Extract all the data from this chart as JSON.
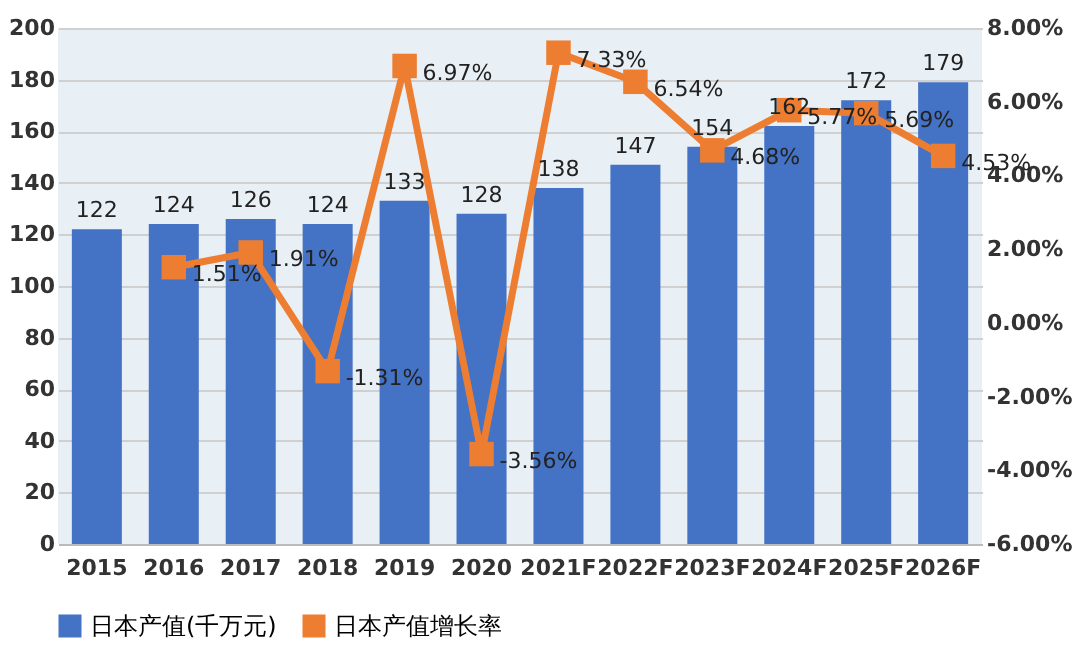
{
  "chart_data": {
    "type": "bar",
    "categories": [
      "2015",
      "2016",
      "2017",
      "2018",
      "2019",
      "2020",
      "2021F",
      "2022F",
      "2023F",
      "2024F",
      "2025F",
      "2026F"
    ],
    "series": [
      {
        "name": "日本产值(千万元)",
        "color": "#4472c4",
        "values": [
          122,
          124,
          126,
          124,
          133,
          128,
          138,
          147,
          154,
          162,
          172,
          179
        ],
        "value_labels": [
          "122",
          "124",
          "126",
          "124",
          "133",
          "128",
          "138",
          "147",
          "154",
          "162",
          "172",
          "179"
        ]
      },
      {
        "name": "日本产值增长率",
        "type": "line",
        "axis": "y2",
        "color": "#ed7d31",
        "values": [
          null,
          1.51,
          1.91,
          -1.31,
          6.97,
          -3.56,
          7.33,
          6.54,
          4.68,
          5.77,
          5.69,
          4.53
        ],
        "value_labels": [
          null,
          "1.51%",
          "1.91%",
          "-1.31%",
          "6.97%",
          "-3.56%",
          "7.33%",
          "6.54%",
          "4.68%",
          "5.77%",
          "5.69%",
          "4.53%"
        ]
      }
    ],
    "ylim": [
      0,
      200
    ],
    "yticks": [
      0,
      20,
      40,
      60,
      80,
      100,
      120,
      140,
      160,
      180,
      200
    ],
    "y2lim": [
      -6,
      8
    ],
    "y2ticks": [
      {
        "value": -6,
        "label": "-6.00%"
      },
      {
        "value": -4,
        "label": "-4.00%"
      },
      {
        "value": -2,
        "label": "-2.00%"
      },
      {
        "value": 0,
        "label": "0.00%"
      },
      {
        "value": 2,
        "label": "2.00%"
      },
      {
        "value": 4,
        "label": "4.00%"
      },
      {
        "value": 6,
        "label": "6.00%"
      },
      {
        "value": 8,
        "label": "8.00%"
      }
    ],
    "grid": "y",
    "legend": "bottom",
    "marker": "square",
    "line_style": "solid"
  }
}
